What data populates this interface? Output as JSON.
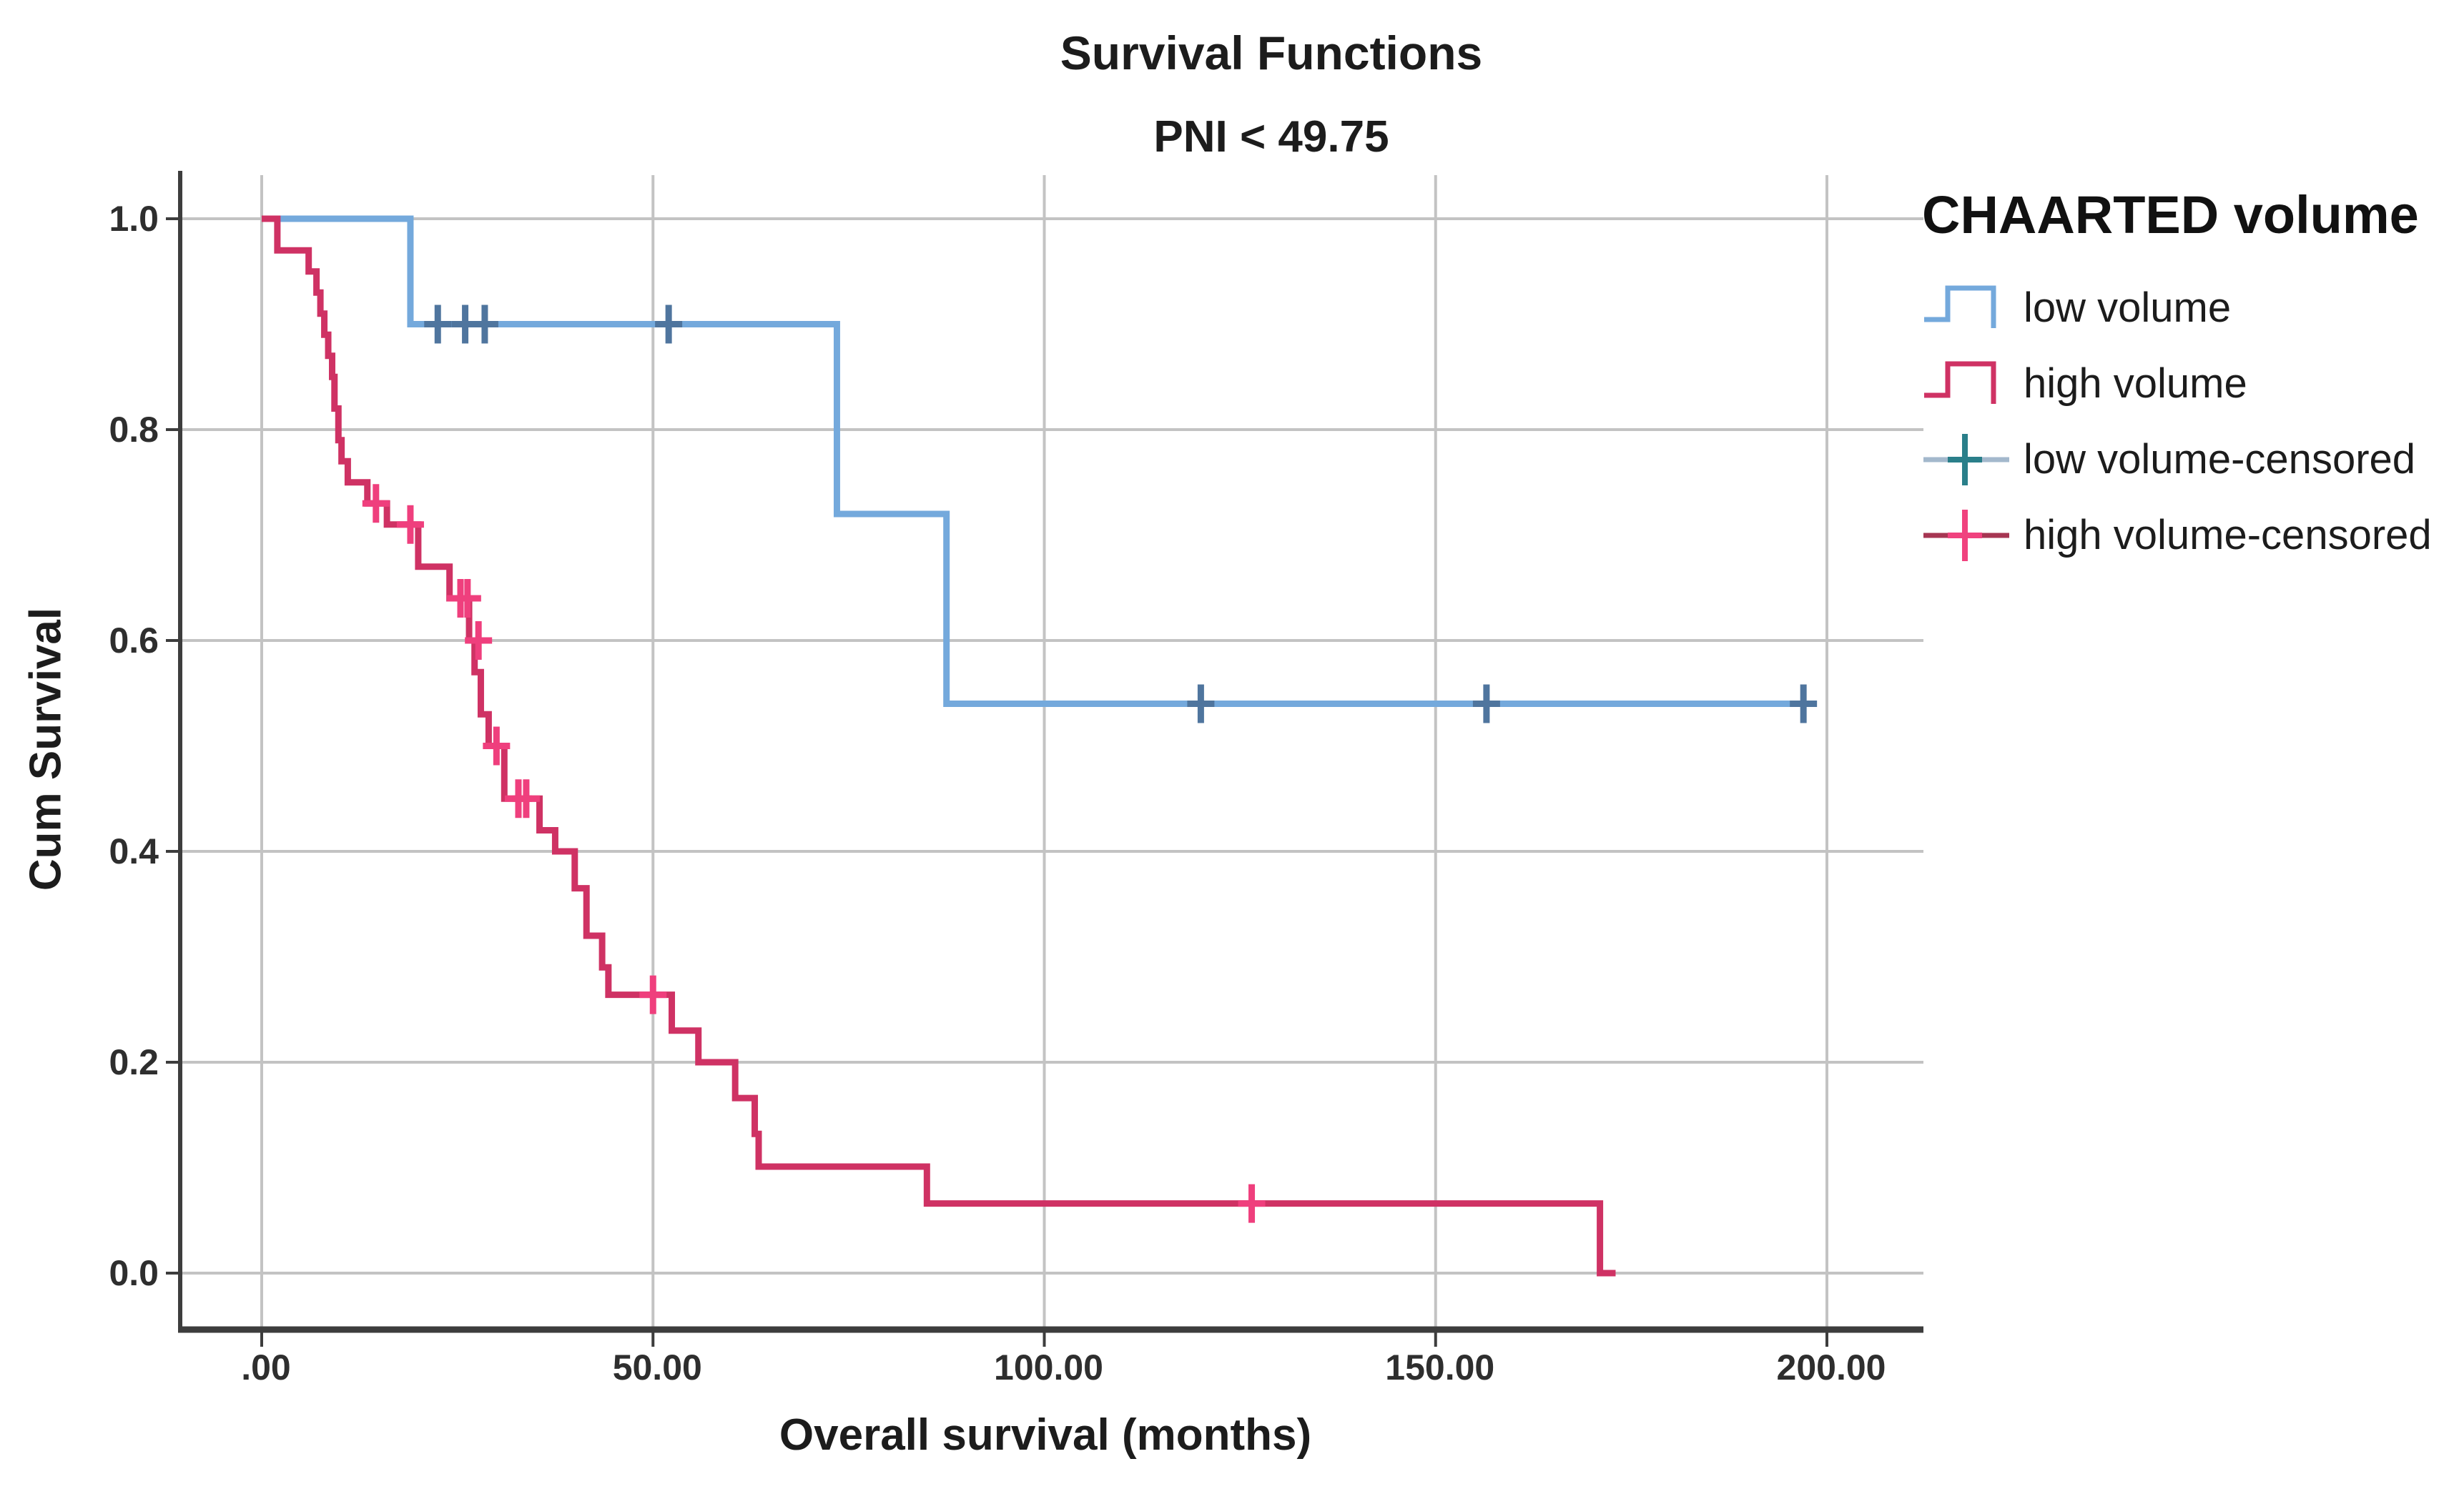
{
  "title": "Survival Functions",
  "subtitle": "PNI < 49.75",
  "axes": {
    "x_label": "Overall survival (months)",
    "y_label": "Cum Survival",
    "x_ticks": [
      {
        "label": ".00",
        "value": 0
      },
      {
        "label": "50.00",
        "value": 50
      },
      {
        "label": "100.00",
        "value": 100
      },
      {
        "label": "150.00",
        "value": 150
      },
      {
        "label": "200.00",
        "value": 200
      }
    ],
    "y_ticks": [
      {
        "label": "0.0",
        "value": 0.0
      },
      {
        "label": "0.2",
        "value": 0.2
      },
      {
        "label": "0.4",
        "value": 0.4
      },
      {
        "label": "0.6",
        "value": 0.6
      },
      {
        "label": "0.8",
        "value": 0.8
      },
      {
        "label": "1.0",
        "value": 1.0
      }
    ],
    "x_range": [
      0,
      212
    ],
    "y_range": [
      0,
      1.0
    ],
    "grid": true
  },
  "legend": {
    "title": "CHAARTED volume",
    "position": "right",
    "items": [
      {
        "label": "low volume",
        "swatch": "step",
        "color": "#74a9dc",
        "cross_color": ""
      },
      {
        "label": "high volume",
        "swatch": "step",
        "color": "#cf3264",
        "cross_color": ""
      },
      {
        "label": "low volume-censored",
        "swatch": "plus",
        "color": "#a3b8cc",
        "cross_color": "#2a7f8a"
      },
      {
        "label": "high volume-censored",
        "swatch": "plus",
        "color": "#a63652",
        "cross_color": "#f0427e"
      }
    ]
  },
  "chart_data": {
    "type": "line",
    "subtype": "kaplan-meier-step",
    "title": "Survival Functions",
    "subtitle": "PNI < 49.75",
    "xlabel": "Overall survival (months)",
    "ylabel": "Cum Survival",
    "xlim": [
      0,
      212
    ],
    "ylim": [
      0,
      1.0
    ],
    "legend_position": "right",
    "grid": true,
    "series": [
      {
        "name": "low volume",
        "color": "#74a9dc",
        "censor_color": "#4f759e",
        "steps": [
          [
            0,
            1.0
          ],
          [
            19,
            0.9
          ],
          [
            73.5,
            0.72
          ],
          [
            87.5,
            0.54
          ]
        ],
        "end_x": 197,
        "censored": [
          [
            22.5,
            0.9
          ],
          [
            26,
            0.9
          ],
          [
            28.5,
            0.9
          ],
          [
            52,
            0.9
          ],
          [
            120,
            0.54
          ],
          [
            156.5,
            0.54
          ],
          [
            197,
            0.54
          ]
        ]
      },
      {
        "name": "high volume",
        "color": "#cf3264",
        "censor_color": "#ef3f7d",
        "steps": [
          [
            0,
            1.0
          ],
          [
            2,
            0.97
          ],
          [
            6,
            0.95
          ],
          [
            7,
            0.93
          ],
          [
            7.5,
            0.91
          ],
          [
            8,
            0.89
          ],
          [
            8.5,
            0.87
          ],
          [
            9,
            0.85
          ],
          [
            9.3,
            0.82
          ],
          [
            9.8,
            0.79
          ],
          [
            10.2,
            0.77
          ],
          [
            11,
            0.75
          ],
          [
            13.5,
            0.73
          ],
          [
            16,
            0.71
          ],
          [
            20,
            0.67
          ],
          [
            24,
            0.64
          ],
          [
            26.5,
            0.6
          ],
          [
            27.2,
            0.57
          ],
          [
            28,
            0.53
          ],
          [
            29,
            0.5
          ],
          [
            31,
            0.45
          ],
          [
            35.5,
            0.42
          ],
          [
            37.5,
            0.4
          ],
          [
            40,
            0.365
          ],
          [
            41.5,
            0.32
          ],
          [
            43.5,
            0.29
          ],
          [
            44.3,
            0.264
          ],
          [
            52.4,
            0.23
          ],
          [
            55.8,
            0.2
          ],
          [
            60.5,
            0.166
          ],
          [
            63,
            0.132
          ],
          [
            63.5,
            0.101
          ],
          [
            85,
            0.066
          ],
          [
            171,
            0.0
          ]
        ],
        "end_x": 173,
        "censored": [
          [
            14.6,
            0.73
          ],
          [
            19,
            0.71
          ],
          [
            25.4,
            0.64
          ],
          [
            26.3,
            0.64
          ],
          [
            27.7,
            0.6
          ],
          [
            30,
            0.5
          ],
          [
            32.8,
            0.45
          ],
          [
            33.8,
            0.45
          ],
          [
            50,
            0.264
          ],
          [
            126.5,
            0.066
          ]
        ]
      }
    ]
  },
  "colors": {
    "grid": "#c3c3c3",
    "spine": "#3d3d3d",
    "tick_text": "#2e2e2e",
    "title_text": "#1a1a1a"
  }
}
